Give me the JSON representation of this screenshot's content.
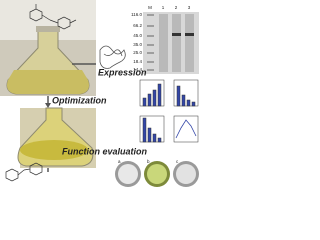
{
  "labels": {
    "expression": "Expression",
    "optimization": "Optimization",
    "function_evaluation": "Function evaluation"
  },
  "gel": {
    "lanes": [
      "M",
      "1",
      "2",
      "3"
    ],
    "markers": [
      "116.0",
      "66.2",
      "45.0",
      "35.0",
      "25.0",
      "18.4",
      "14.4"
    ]
  },
  "dishes": [
    "a",
    "b",
    "c"
  ]
}
